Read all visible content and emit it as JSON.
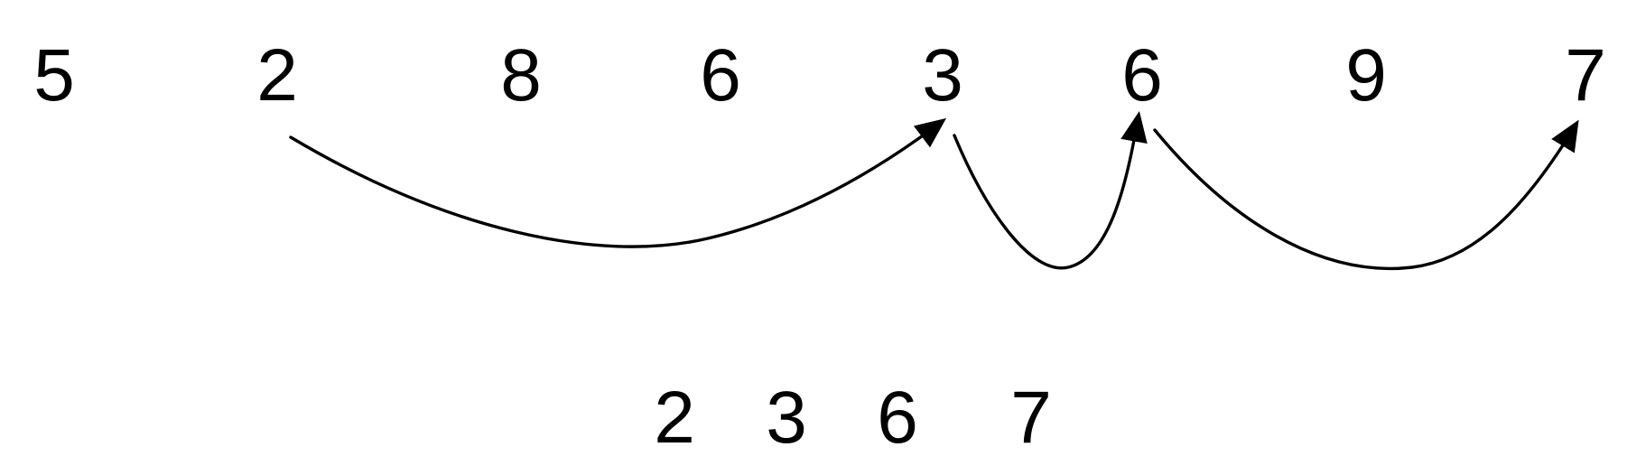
{
  "sequence": [
    {
      "value": "5"
    },
    {
      "value": "2"
    },
    {
      "value": "8"
    },
    {
      "value": "6"
    },
    {
      "value": "3"
    },
    {
      "value": "6"
    },
    {
      "value": "9"
    },
    {
      "value": "7"
    }
  ],
  "arrows": [
    {
      "from_index": 1,
      "to_index": 4
    },
    {
      "from_index": 4,
      "to_index": 5
    },
    {
      "from_index": 5,
      "to_index": 7
    }
  ],
  "subsequence": [
    {
      "value": "2"
    },
    {
      "value": "3"
    },
    {
      "value": "6"
    },
    {
      "value": "7"
    }
  ]
}
